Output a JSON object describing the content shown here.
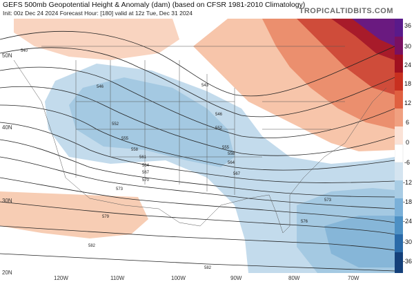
{
  "header": {
    "title": "GEFS 500mb Geopotential Height & Anomaly (dam) (based on CFSR 1981-2010 Climatology)",
    "subtitle": "Init: 00z Dec 24 2024   Forecast Hour: [180]   valid at 12z Tue, Dec 31 2024",
    "brand": "TROPICALTIDBITS.COM"
  },
  "colorbar": {
    "labels": [
      "36",
      "30",
      "24",
      "18",
      "12",
      "6",
      "0",
      "-6",
      "-12",
      "-18",
      "-24",
      "-30",
      "-36"
    ],
    "colors": [
      "#5a1a8a",
      "#7a1060",
      "#a01020",
      "#c83020",
      "#e06040",
      "#f0a080",
      "#fbe2d6",
      "#ffffff",
      "#d4e4f0",
      "#a8cce4",
      "#7ab0d8",
      "#4d90c4",
      "#2a6aa8",
      "#14407a"
    ]
  },
  "lat_labels": [
    "50N",
    "40N",
    "30N",
    "20N"
  ],
  "lon_labels": [
    "120W",
    "110W",
    "100W",
    "90W",
    "80W",
    "70W"
  ],
  "contour_labels": [
    "540",
    "546",
    "552",
    "555",
    "558",
    "561",
    "564",
    "567",
    "570",
    "573",
    "543",
    "546",
    "552",
    "555",
    "558",
    "564",
    "567",
    "573",
    "576",
    "579",
    "582",
    "582"
  ]
}
